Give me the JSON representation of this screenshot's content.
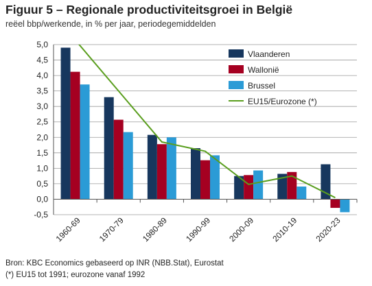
{
  "chart_data": {
    "type": "bar",
    "title": "Figuur 5 – Regionale productiviteitsgroei in België",
    "subtitle": "reëel bbp/werkende, in % per jaar, periodegemiddelden",
    "categories": [
      "1960-69",
      "1970-79",
      "1980-89",
      "1990-99",
      "2000-09",
      "2010-19",
      "2020-23"
    ],
    "series": [
      {
        "name": "Vlaanderen",
        "color": "#17375e",
        "values": [
          4.9,
          3.3,
          2.08,
          1.65,
          0.75,
          0.82,
          1.13
        ]
      },
      {
        "name": "Wallonië",
        "color": "#a50021",
        "values": [
          4.12,
          2.57,
          1.78,
          1.26,
          0.78,
          0.88,
          -0.28
        ]
      },
      {
        "name": "Brussel",
        "color": "#2b9bd6",
        "values": [
          3.71,
          2.17,
          2.0,
          1.42,
          0.93,
          0.41,
          -0.42
        ]
      }
    ],
    "line_series": {
      "name": "EU15/Eurozone (*)",
      "color": "#5a9e1e",
      "values": [
        5.15,
        3.5,
        1.85,
        1.55,
        0.48,
        0.75,
        0.05
      ]
    },
    "ylim": [
      -0.5,
      5.0
    ],
    "yticks": [
      "-0,5",
      "0,0",
      "0,5",
      "1,0",
      "1,5",
      "2,0",
      "2,5",
      "3,0",
      "3,5",
      "4,0",
      "4,5",
      "5,0"
    ],
    "grid": true,
    "legend_position": "top-right"
  },
  "source_lines": [
    "Bron: KBC Economics gebaseerd op INR (NBB.Stat), Eurostat",
    "(*) EU15 tot 1991; eurozone vanaf 1992"
  ]
}
